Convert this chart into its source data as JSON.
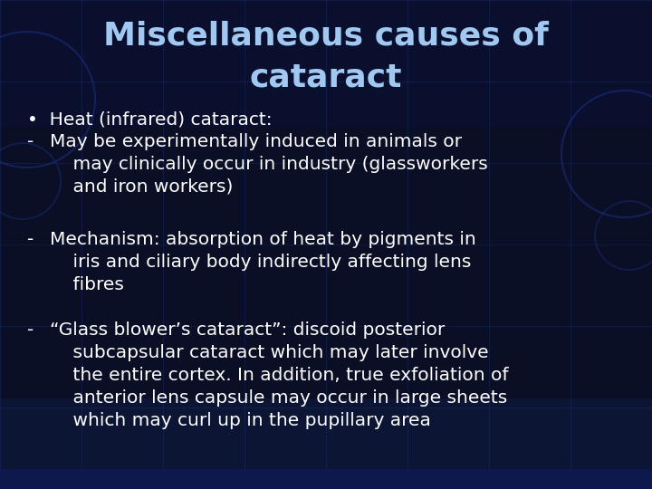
{
  "title_line1": "Miscellaneous causes of",
  "title_line2": "cataract",
  "title_color": "#a0c8f0",
  "title_fontsize": 26,
  "body_color": "#ffffff",
  "body_fontsize": 14.5,
  "bg_dark": "#050510",
  "bg_mid": "#0a0f25",
  "bg_bottom": "#0d1535",
  "title_bg": "#0a1030",
  "grid_color": "#1a2d6e",
  "circle_color": "#1a2d7e",
  "figsize": [
    7.2,
    5.4
  ],
  "dpi": 100,
  "bullet": "•  Heat (infrared) cataract:",
  "item1_dash": "-",
  "item1_text": "May be experimentally induced in animals or\n    may clinically occur in industry (glassworkers\n    and iron workers)",
  "item2_dash": "-",
  "item2_text": "Mechanism: absorption of heat by pigments in\n    iris and ciliary body indirectly affecting lens\n    fibres",
  "item3_dash": "-",
  "item3_text": "“Glass blower’s cataract”: discoid posterior\n    subcapsular cataract which may later involve\n    the entire cortex. In addition, true exfoliation of\n    anterior lens capsule may occur in large sheets\n    which may curl up in the pupillary area"
}
